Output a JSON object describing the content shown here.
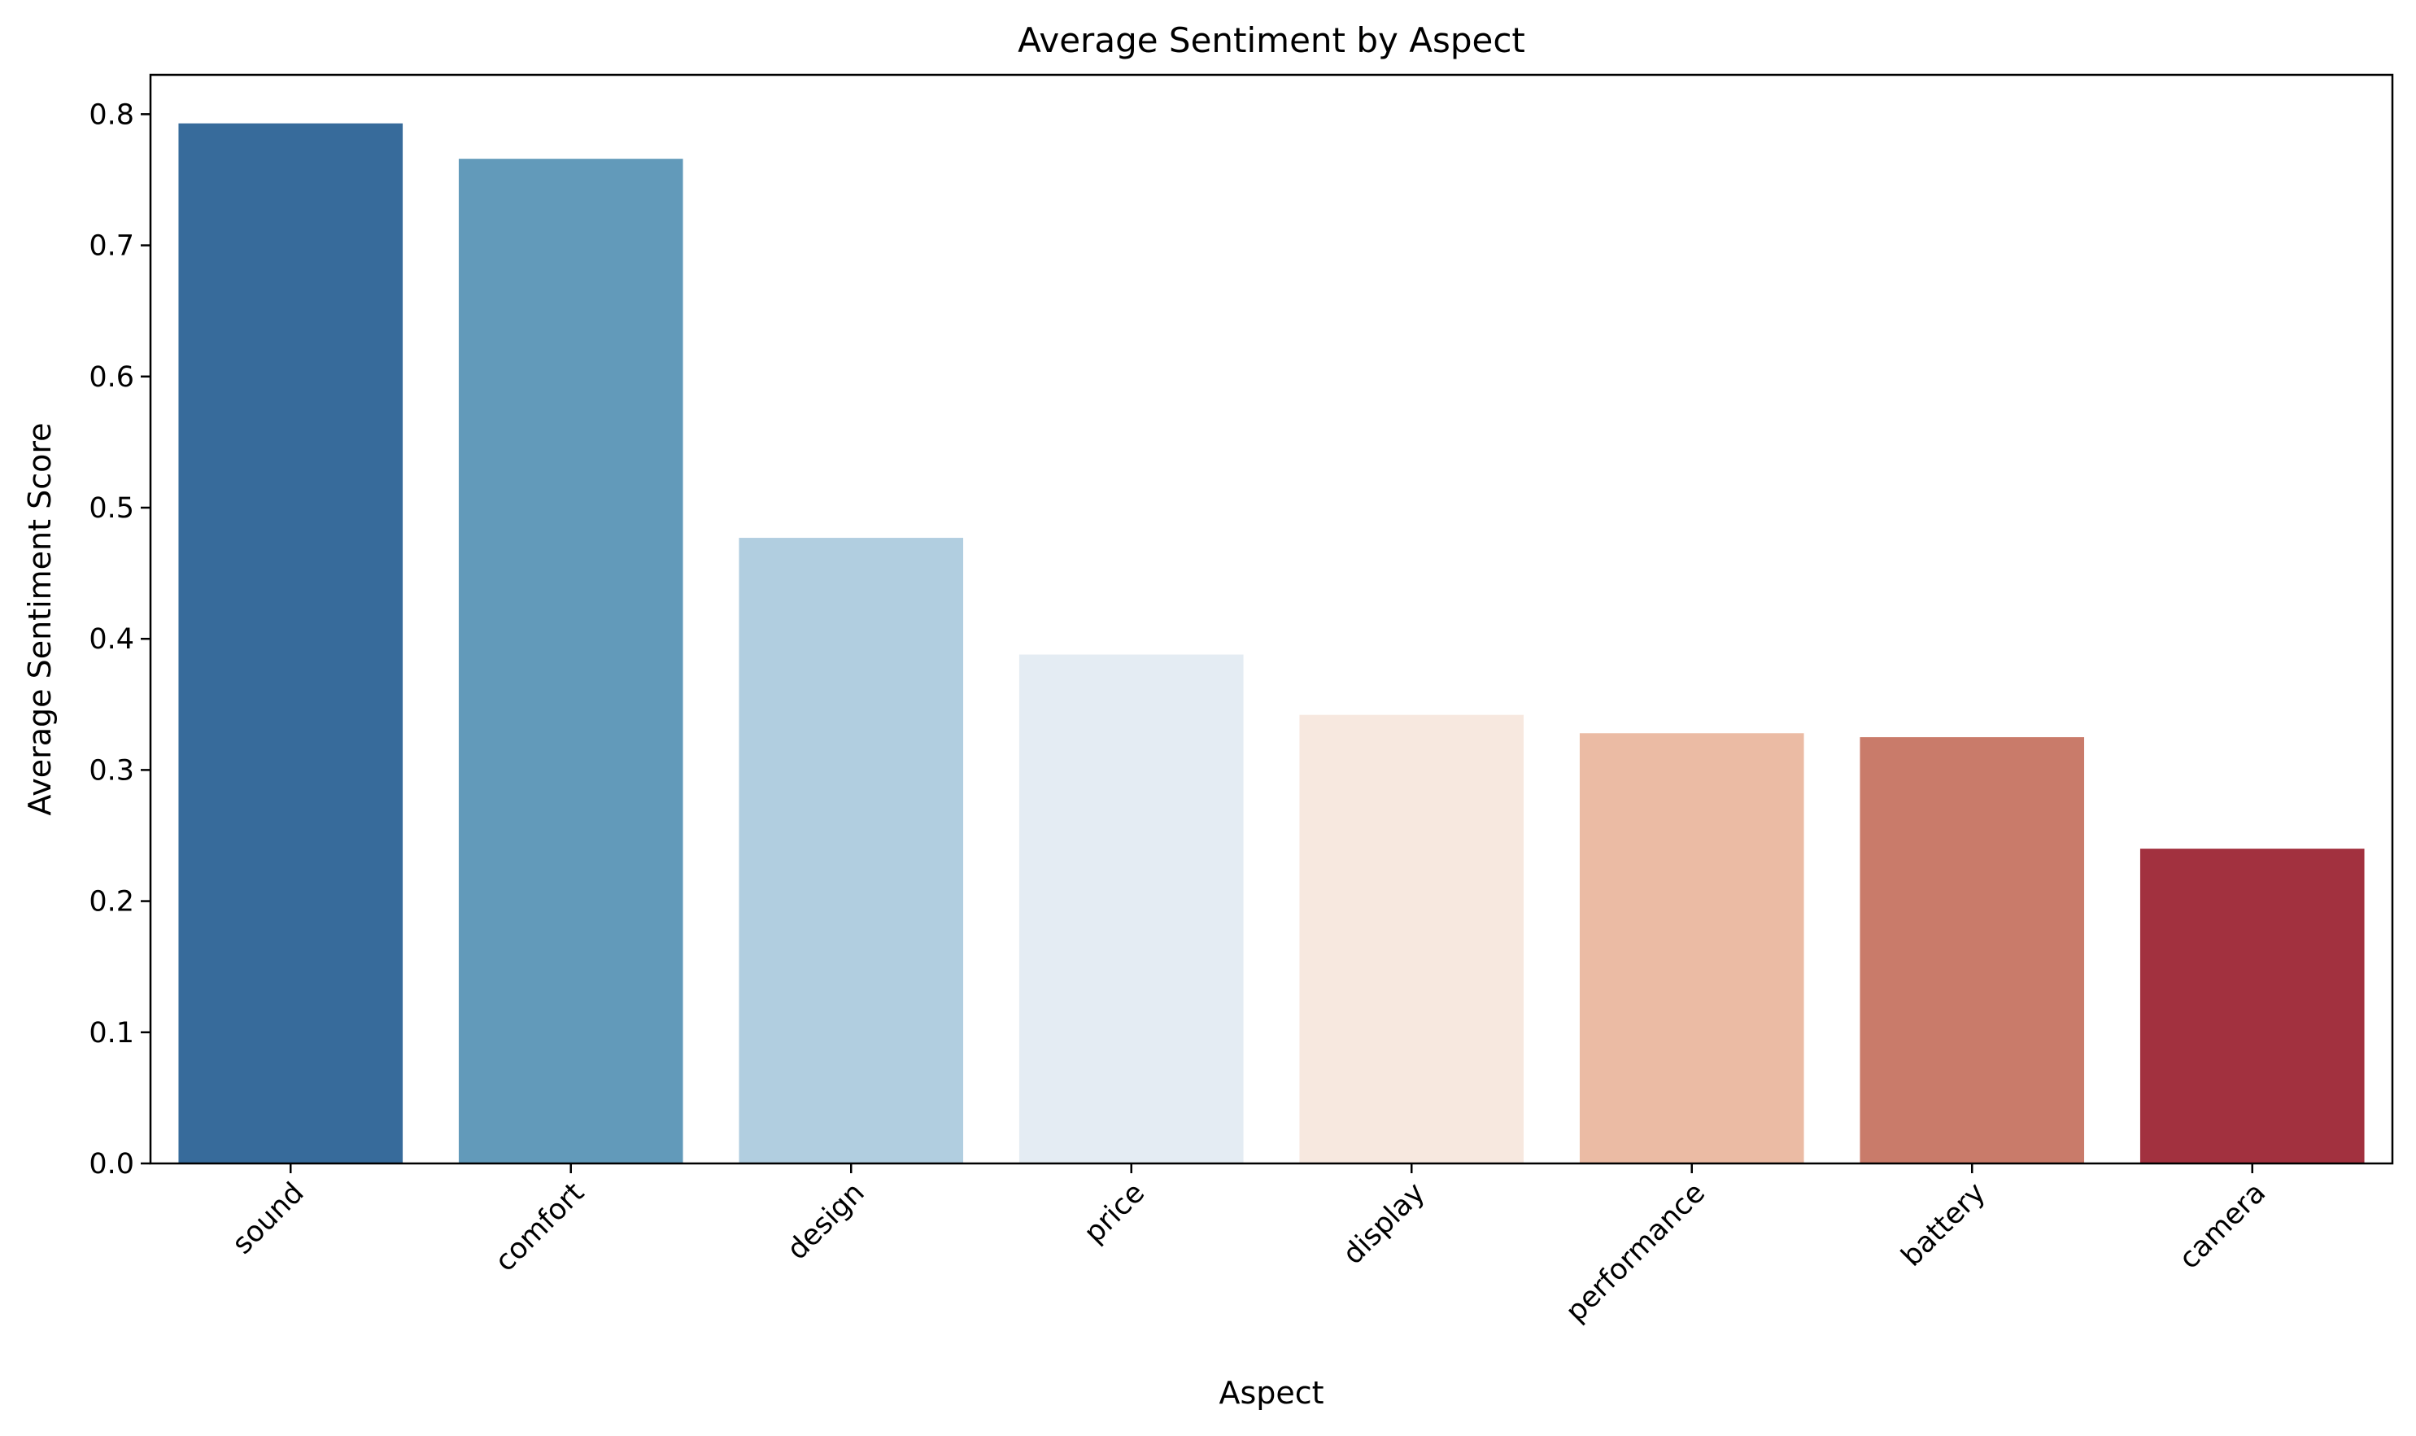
{
  "chart_data": {
    "type": "bar",
    "title": "Average Sentiment by Aspect",
    "xlabel": "Aspect",
    "ylabel": "Average Sentiment Score",
    "categories": [
      "sound",
      "comfort",
      "design",
      "price",
      "display",
      "performance",
      "battery",
      "camera"
    ],
    "values": [
      0.793,
      0.766,
      0.477,
      0.388,
      0.342,
      0.328,
      0.325,
      0.24
    ],
    "colors": [
      "#376b9b",
      "#629aba",
      "#b1cee0",
      "#e4ecf3",
      "#f7e8df",
      "#ebbba4",
      "#c97b6a",
      "#a2313f"
    ],
    "ylim": [
      0,
      0.83
    ],
    "yticks": [
      0.0,
      0.1,
      0.2,
      0.3,
      0.4,
      0.5,
      0.6,
      0.7,
      0.8
    ],
    "ytick_labels": [
      "0.0",
      "0.1",
      "0.2",
      "0.3",
      "0.4",
      "0.5",
      "0.6",
      "0.7",
      "0.8"
    ],
    "grid": false,
    "xtick_rotation_deg": 45
  }
}
